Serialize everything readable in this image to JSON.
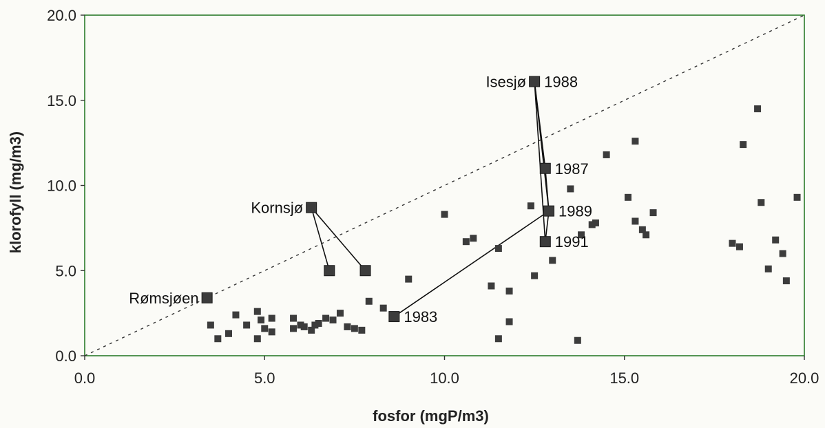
{
  "chart_data": {
    "type": "scatter",
    "title": "",
    "xlabel": "fosfor (mgP/m3)",
    "ylabel": "klorofyll (mg/m3)",
    "xlim": [
      0,
      20
    ],
    "ylim": [
      0,
      20
    ],
    "x_ticks": [
      "0.0",
      "5.0",
      "10.0",
      "15.0",
      "20.0"
    ],
    "y_ticks": [
      "0.0",
      "5.0",
      "10.0",
      "15.0",
      "20.0"
    ],
    "grid": false,
    "legend": "none",
    "reference_line": {
      "style": "dashed",
      "from": [
        0,
        0
      ],
      "to": [
        20,
        20
      ]
    },
    "colors": {
      "marker": "#3c3c3c",
      "frame": "#2a7a2a",
      "line": "#111111"
    },
    "points": [
      {
        "x": 3.5,
        "y": 1.8
      },
      {
        "x": 3.7,
        "y": 1.0
      },
      {
        "x": 4.0,
        "y": 1.3
      },
      {
        "x": 4.2,
        "y": 2.4
      },
      {
        "x": 4.5,
        "y": 1.8
      },
      {
        "x": 4.8,
        "y": 2.6
      },
      {
        "x": 4.8,
        "y": 1.0
      },
      {
        "x": 4.9,
        "y": 2.1
      },
      {
        "x": 5.0,
        "y": 1.6
      },
      {
        "x": 5.2,
        "y": 2.2
      },
      {
        "x": 5.2,
        "y": 1.4
      },
      {
        "x": 5.8,
        "y": 1.6
      },
      {
        "x": 5.8,
        "y": 2.2
      },
      {
        "x": 6.0,
        "y": 1.8
      },
      {
        "x": 6.1,
        "y": 1.7
      },
      {
        "x": 6.3,
        "y": 1.5
      },
      {
        "x": 6.4,
        "y": 1.8
      },
      {
        "x": 6.5,
        "y": 1.9
      },
      {
        "x": 6.7,
        "y": 2.2
      },
      {
        "x": 6.9,
        "y": 2.1
      },
      {
        "x": 7.1,
        "y": 2.5
      },
      {
        "x": 7.3,
        "y": 1.7
      },
      {
        "x": 7.5,
        "y": 1.6
      },
      {
        "x": 7.7,
        "y": 1.5
      },
      {
        "x": 7.9,
        "y": 3.2
      },
      {
        "x": 8.3,
        "y": 2.8
      },
      {
        "x": 9.0,
        "y": 4.5
      },
      {
        "x": 10.0,
        "y": 8.3
      },
      {
        "x": 10.6,
        "y": 6.7
      },
      {
        "x": 10.8,
        "y": 6.9
      },
      {
        "x": 11.3,
        "y": 4.1
      },
      {
        "x": 11.5,
        "y": 1.0
      },
      {
        "x": 11.5,
        "y": 6.3
      },
      {
        "x": 11.8,
        "y": 3.8
      },
      {
        "x": 11.8,
        "y": 2.0
      },
      {
        "x": 12.4,
        "y": 8.8
      },
      {
        "x": 12.5,
        "y": 4.7
      },
      {
        "x": 13.0,
        "y": 5.6
      },
      {
        "x": 13.5,
        "y": 9.8
      },
      {
        "x": 13.7,
        "y": 0.9
      },
      {
        "x": 13.8,
        "y": 7.1
      },
      {
        "x": 14.1,
        "y": 7.7
      },
      {
        "x": 14.2,
        "y": 7.8
      },
      {
        "x": 14.5,
        "y": 11.8
      },
      {
        "x": 15.1,
        "y": 9.3
      },
      {
        "x": 15.3,
        "y": 12.6
      },
      {
        "x": 15.3,
        "y": 7.9
      },
      {
        "x": 15.5,
        "y": 7.4
      },
      {
        "x": 15.6,
        "y": 7.1
      },
      {
        "x": 15.8,
        "y": 8.4
      },
      {
        "x": 18.0,
        "y": 6.6
      },
      {
        "x": 18.2,
        "y": 6.4
      },
      {
        "x": 18.3,
        "y": 12.4
      },
      {
        "x": 18.7,
        "y": 14.5
      },
      {
        "x": 18.8,
        "y": 9.0
      },
      {
        "x": 19.0,
        "y": 5.1
      },
      {
        "x": 19.2,
        "y": 6.8
      },
      {
        "x": 19.4,
        "y": 6.0
      },
      {
        "x": 19.5,
        "y": 4.4
      },
      {
        "x": 19.8,
        "y": 9.3
      }
    ],
    "highlighted": [
      {
        "x": 3.4,
        "y": 3.4
      },
      {
        "x": 6.3,
        "y": 8.7
      },
      {
        "x": 6.8,
        "y": 5.0
      },
      {
        "x": 7.8,
        "y": 5.0
      },
      {
        "x": 8.6,
        "y": 2.3
      },
      {
        "x": 12.5,
        "y": 16.1
      },
      {
        "x": 12.8,
        "y": 11.0
      },
      {
        "x": 12.9,
        "y": 8.5
      },
      {
        "x": 12.8,
        "y": 6.7
      }
    ],
    "connections": [
      {
        "from": [
          6.3,
          8.7
        ],
        "to": [
          6.8,
          5.0
        ]
      },
      {
        "from": [
          6.3,
          8.7
        ],
        "to": [
          7.8,
          5.0
        ]
      },
      {
        "from": [
          8.6,
          2.3
        ],
        "to": [
          12.9,
          8.5
        ]
      },
      {
        "from": [
          12.5,
          16.1
        ],
        "to": [
          12.8,
          11.0
        ]
      },
      {
        "from": [
          12.5,
          16.1
        ],
        "to": [
          12.9,
          8.5
        ]
      },
      {
        "from": [
          12.5,
          16.1
        ],
        "to": [
          12.8,
          6.7
        ]
      },
      {
        "from": [
          12.8,
          11.0
        ],
        "to": [
          12.9,
          8.5
        ]
      },
      {
        "from": [
          12.9,
          8.5
        ],
        "to": [
          12.8,
          6.7
        ]
      }
    ],
    "annotations": [
      {
        "text": "Rømsjøen",
        "x": 3.4,
        "y": 3.4,
        "side": "left"
      },
      {
        "text": "Kornsjø",
        "x": 6.3,
        "y": 8.7,
        "side": "left"
      },
      {
        "text": "Isesjø",
        "x": 12.5,
        "y": 16.1,
        "side": "left"
      },
      {
        "text": "1988",
        "x": 12.5,
        "y": 16.1,
        "side": "right"
      },
      {
        "text": "1987",
        "x": 12.8,
        "y": 11.0,
        "side": "right"
      },
      {
        "text": "1989",
        "x": 12.9,
        "y": 8.5,
        "side": "right"
      },
      {
        "text": "1991",
        "x": 12.8,
        "y": 6.7,
        "side": "right"
      },
      {
        "text": "1983",
        "x": 8.6,
        "y": 2.3,
        "side": "right"
      }
    ]
  }
}
